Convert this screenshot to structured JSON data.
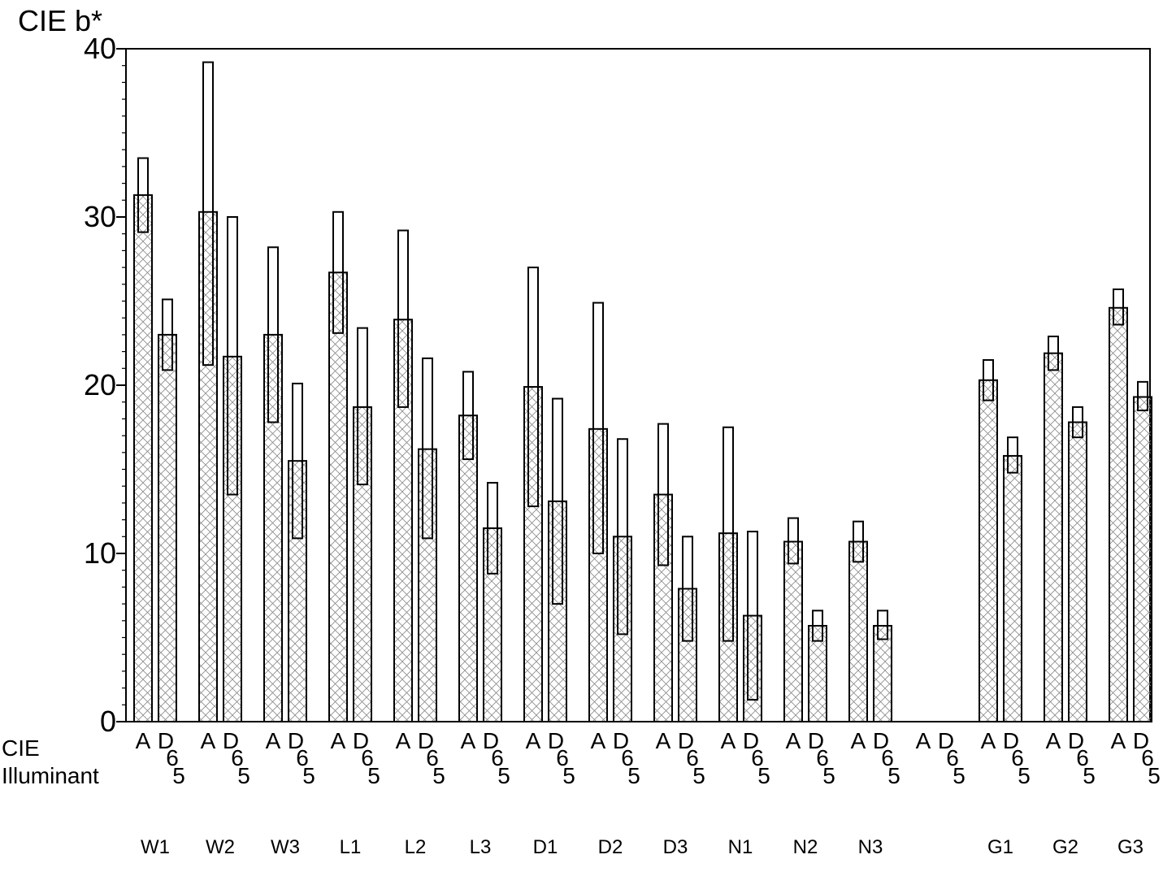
{
  "chart_data": {
    "type": "bar",
    "title": "",
    "ylabel": "CIE b*",
    "xlabel": "CIE Illuminant",
    "ylim": [
      0,
      40
    ],
    "yticks": [
      0,
      10,
      20,
      30,
      40
    ],
    "grid": false,
    "illuminants": [
      "A",
      "D65"
    ],
    "illuminant_label_parts": [
      "A",
      "D",
      "6",
      "5"
    ],
    "groups": [
      {
        "name": "W1",
        "A": {
          "mean": 31.3,
          "low": 29.1,
          "high": 33.5
        },
        "D65": {
          "mean": 23.0,
          "low": 20.9,
          "high": 25.1
        }
      },
      {
        "name": "W2",
        "A": {
          "mean": 30.3,
          "low": 21.2,
          "high": 39.2
        },
        "D65": {
          "mean": 21.7,
          "low": 13.5,
          "high": 30.0
        }
      },
      {
        "name": "W3",
        "A": {
          "mean": 23.0,
          "low": 17.8,
          "high": 28.2
        },
        "D65": {
          "mean": 15.5,
          "low": 10.9,
          "high": 20.1
        }
      },
      {
        "name": "L1",
        "A": {
          "mean": 26.7,
          "low": 23.1,
          "high": 30.3
        },
        "D65": {
          "mean": 18.7,
          "low": 14.1,
          "high": 23.4
        }
      },
      {
        "name": "L2",
        "A": {
          "mean": 23.9,
          "low": 18.7,
          "high": 29.2
        },
        "D65": {
          "mean": 16.2,
          "low": 10.9,
          "high": 21.6
        }
      },
      {
        "name": "L3",
        "A": {
          "mean": 18.2,
          "low": 15.6,
          "high": 20.8
        },
        "D65": {
          "mean": 11.5,
          "low": 8.8,
          "high": 14.2
        }
      },
      {
        "name": "D1",
        "A": {
          "mean": 19.9,
          "low": 12.8,
          "high": 27.0
        },
        "D65": {
          "mean": 13.1,
          "low": 7.0,
          "high": 19.2
        }
      },
      {
        "name": "D2",
        "A": {
          "mean": 17.4,
          "low": 10.0,
          "high": 24.9
        },
        "D65": {
          "mean": 11.0,
          "low": 5.2,
          "high": 16.8
        }
      },
      {
        "name": "D3",
        "A": {
          "mean": 13.5,
          "low": 9.3,
          "high": 17.7
        },
        "D65": {
          "mean": 7.9,
          "low": 4.8,
          "high": 11.0
        }
      },
      {
        "name": "N1",
        "A": {
          "mean": 11.2,
          "low": 4.8,
          "high": 17.5
        },
        "D65": {
          "mean": 6.3,
          "low": 1.3,
          "high": 11.3
        }
      },
      {
        "name": "N2",
        "A": {
          "mean": 10.7,
          "low": 9.4,
          "high": 12.1
        },
        "D65": {
          "mean": 5.7,
          "low": 4.8,
          "high": 6.6
        }
      },
      {
        "name": "N3",
        "A": {
          "mean": 10.7,
          "low": 9.5,
          "high": 11.9
        },
        "D65": {
          "mean": 5.7,
          "low": 4.9,
          "high": 6.6
        }
      },
      {
        "name": "",
        "A": null,
        "D65": null
      },
      {
        "name": "G1",
        "A": {
          "mean": 20.3,
          "low": 19.1,
          "high": 21.5
        },
        "D65": {
          "mean": 15.8,
          "low": 14.8,
          "high": 16.9
        }
      },
      {
        "name": "G2",
        "A": {
          "mean": 21.9,
          "low": 20.9,
          "high": 22.9
        },
        "D65": {
          "mean": 17.8,
          "low": 16.9,
          "high": 18.7
        }
      },
      {
        "name": "G3",
        "A": {
          "mean": 24.6,
          "low": 23.6,
          "high": 25.7
        },
        "D65": {
          "mean": 19.3,
          "low": 18.5,
          "high": 20.2
        }
      }
    ]
  }
}
